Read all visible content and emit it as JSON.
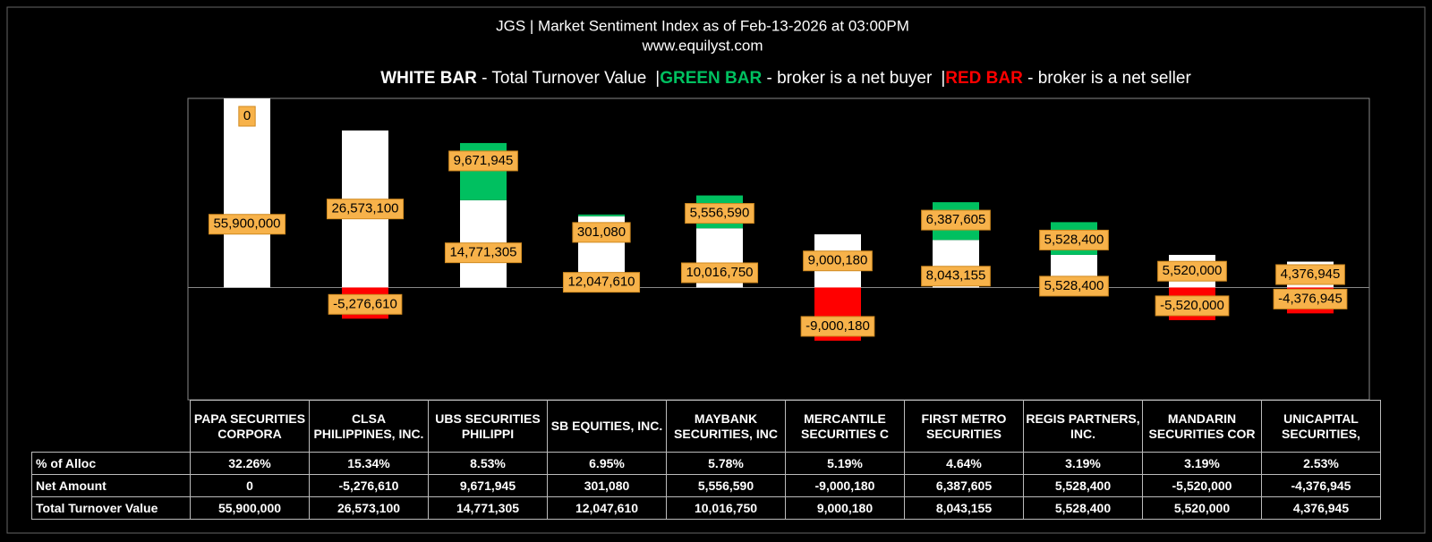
{
  "title": "JGS | Market Sentiment Index as of Feb-13-2026 at 03:00PM",
  "subtitle": "www.equilyst.com",
  "legend": [
    {
      "key": "WHITE BAR",
      "desc": " - Total Turnover Value",
      "color": "#ffffff"
    },
    {
      "key": "GREEN BAR",
      "desc": " -  broker is a net buyer",
      "color": "#00c060"
    },
    {
      "key": "RED BAR",
      "desc": " - broker is a net seller",
      "color": "#ff0000"
    }
  ],
  "separator": "|",
  "chart_data": {
    "type": "bar",
    "categories": [
      "PAPA SECURITIES CORPORA",
      "CLSA PHILIPPINES, INC.",
      "UBS SECURITIES PHILIPPI",
      "SB EQUITIES, INC.",
      "MAYBANK SECURITIES, INC",
      "MERCANTILE SECURITIES C",
      "FIRST METRO SECURITIES",
      "REGIS PARTNERS, INC.",
      "MANDARIN SECURITIES COR",
      "UNICAPITAL SECURITIES,"
    ],
    "ylim": [
      -19000000,
      32000000
    ],
    "series": [
      {
        "name": "Total Turnover Value",
        "color": "#ffffff",
        "values": [
          55900000,
          26573100,
          14771305,
          12047610,
          10016750,
          9000180,
          8043155,
          5528400,
          5520000,
          4376945
        ],
        "value_labels": [
          "55,900,000",
          "26,573,100",
          "14,771,305",
          "12,047,610",
          "10,016,750",
          "9,000,180",
          "8,043,155",
          "5,528,400",
          "5,520,000",
          "4,376,945"
        ]
      },
      {
        "name": "Net Amount",
        "color": "#00c060",
        "negative_color": "#ff0000",
        "values": [
          0,
          -5276610,
          9671945,
          301080,
          5556590,
          -9000180,
          6387605,
          5528400,
          -5520000,
          -4376945
        ],
        "value_labels": [
          "0",
          "-5,276,610",
          "9,671,945",
          "301,080",
          "5,556,590",
          "-9,000,180",
          "6,387,605",
          "5,528,400",
          "-5,520,000",
          "-4,376,945"
        ]
      }
    ]
  },
  "table": {
    "row_labels": [
      "% of Alloc",
      "Net Amount",
      "Total Turnover Value"
    ],
    "alloc": [
      "32.26%",
      "15.34%",
      "8.53%",
      "6.95%",
      "5.78%",
      "5.19%",
      "4.64%",
      "3.19%",
      "3.19%",
      "2.53%"
    ]
  }
}
